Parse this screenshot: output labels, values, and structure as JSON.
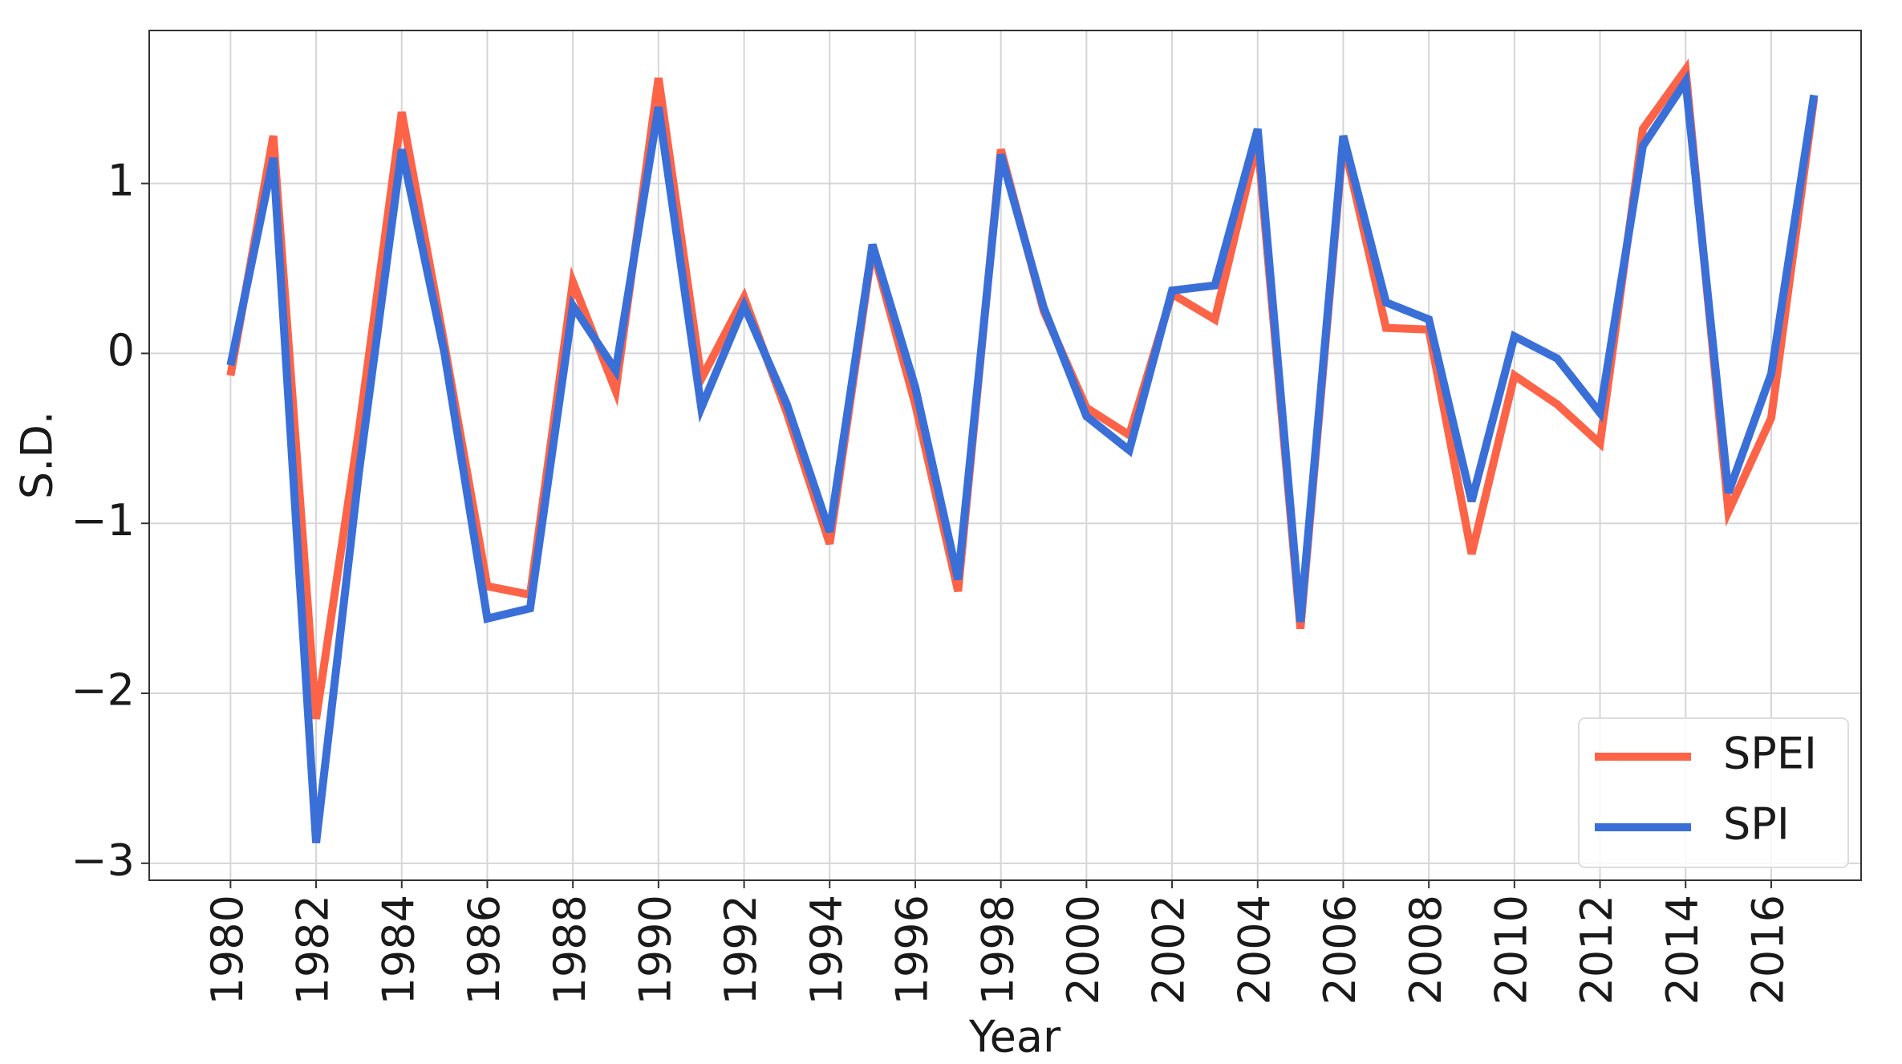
{
  "chart_data": {
    "type": "line",
    "x_label": "Year",
    "y_label": "S.D.",
    "x": [
      1980,
      1981,
      1982,
      1983,
      1984,
      1985,
      1986,
      1987,
      1988,
      1989,
      1990,
      1991,
      1992,
      1993,
      1994,
      1995,
      1996,
      1997,
      1998,
      1999,
      2000,
      2001,
      2002,
      2003,
      2004,
      2005,
      2006,
      2007,
      2008,
      2009,
      2010,
      2011,
      2012,
      2013,
      2014,
      2015,
      2016,
      2017
    ],
    "series": [
      {
        "name": "SPEI",
        "color": "#fd6347",
        "values": [
          -0.13,
          1.28,
          -2.15,
          -0.45,
          1.42,
          0.05,
          -1.37,
          -1.42,
          0.42,
          -0.22,
          1.62,
          -0.15,
          0.33,
          -0.35,
          -1.12,
          0.62,
          -0.3,
          -1.4,
          1.2,
          0.25,
          -0.32,
          -0.48,
          0.35,
          0.2,
          1.25,
          -1.62,
          1.25,
          0.15,
          0.14,
          -1.18,
          -0.13,
          -0.3,
          -0.53,
          1.32,
          1.67,
          -0.93,
          -0.38,
          1.5
        ]
      },
      {
        "name": "SPI",
        "color": "#3a6fd8",
        "values": [
          -0.07,
          1.15,
          -2.88,
          -0.7,
          1.2,
          0.0,
          -1.56,
          -1.5,
          0.28,
          -0.1,
          1.45,
          -0.32,
          0.28,
          -0.3,
          -1.05,
          0.64,
          -0.2,
          -1.33,
          1.17,
          0.27,
          -0.37,
          -0.57,
          0.37,
          0.4,
          1.32,
          -1.58,
          1.28,
          0.3,
          0.2,
          -0.87,
          0.1,
          -0.03,
          -0.35,
          1.22,
          1.6,
          -0.82,
          -0.12,
          1.52
        ]
      }
    ],
    "xlim": [
      1978.1,
      2018.1
    ],
    "xticks": [
      1980,
      1982,
      1984,
      1986,
      1988,
      1990,
      1992,
      1994,
      1996,
      1998,
      2000,
      2002,
      2004,
      2006,
      2008,
      2010,
      2012,
      2014,
      2016
    ],
    "ylim": [
      -3.1,
      1.9
    ],
    "yticks": [
      {
        "value": -3,
        "label": "−3"
      },
      {
        "value": -2,
        "label": "−2"
      },
      {
        "value": -1,
        "label": "−1"
      },
      0,
      1
    ],
    "grid": true,
    "legend": "lower right"
  }
}
